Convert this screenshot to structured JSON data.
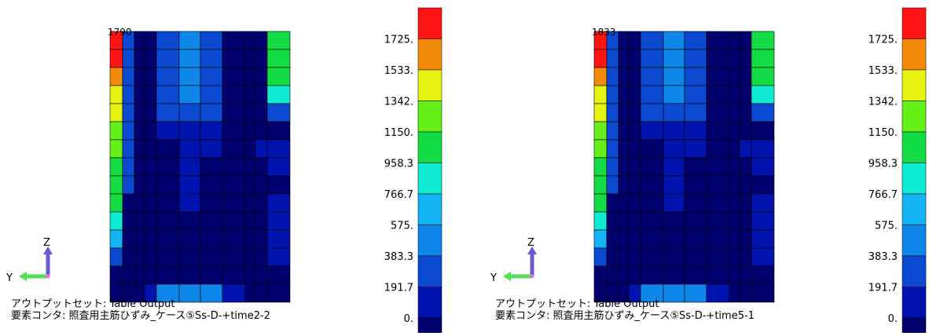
{
  "colors": {
    "levels": [
      "#00006f",
      "#0013ae",
      "#0a49d0",
      "#0f86ea",
      "#14b4f4",
      "#10ecd4",
      "#13dc44",
      "#66f019",
      "#e6f20f",
      "#f28a0a",
      "#ff1414"
    ],
    "mesh_line": "#000000",
    "axis_z": "#6a5acd",
    "axis_y": "#55dd55"
  },
  "legend": {
    "labels": [
      "1725.",
      "1533.",
      "1342.",
      "1150.",
      "958.3",
      "766.7",
      "575.",
      "383.3",
      "191.7",
      "0."
    ]
  },
  "axes": {
    "z_label": "Z",
    "y_label": "Y"
  },
  "panels": [
    {
      "max_label": "1790",
      "caption_line1": "アウトプットセット: Table Output",
      "caption_line2": "要素コンタ: 照査用主筋ひずみ_ケース⑤Ss-D-+time2-2",
      "grid": [
        [
          10,
          2,
          0,
          0,
          2,
          3,
          2,
          0,
          0,
          0,
          6
        ],
        [
          10,
          2,
          0,
          0,
          2,
          3,
          2,
          0,
          0,
          0,
          6
        ],
        [
          9,
          2,
          0,
          0,
          2,
          3,
          2,
          0,
          0,
          0,
          6
        ],
        [
          8,
          2,
          0,
          0,
          2,
          3,
          2,
          0,
          0,
          0,
          5
        ],
        [
          8,
          2,
          0,
          0,
          2,
          2,
          2,
          0,
          0,
          0,
          2
        ],
        [
          7,
          2,
          0,
          0,
          1,
          1,
          1,
          0,
          0,
          0,
          0
        ],
        [
          7,
          2,
          0,
          0,
          0,
          1,
          1,
          0,
          0,
          1,
          1
        ],
        [
          6,
          2,
          0,
          0,
          0,
          1,
          0,
          0,
          0,
          0,
          1
        ],
        [
          6,
          2,
          0,
          0,
          0,
          1,
          0,
          0,
          0,
          0,
          0
        ],
        [
          6,
          0,
          0,
          0,
          0,
          1,
          0,
          0,
          0,
          0,
          1
        ],
        [
          5,
          0,
          0,
          0,
          0,
          0,
          0,
          0,
          0,
          0,
          1
        ],
        [
          4,
          0,
          0,
          0,
          0,
          0,
          0,
          0,
          0,
          0,
          1
        ],
        [
          2,
          0,
          0,
          0,
          0,
          0,
          0,
          0,
          0,
          0,
          1
        ],
        [
          0,
          0,
          0,
          0,
          0,
          0,
          0,
          0,
          0,
          0,
          0
        ],
        [
          0,
          0,
          0,
          1,
          3,
          3,
          3,
          1,
          0,
          0,
          0
        ]
      ]
    },
    {
      "max_label": "1833",
      "caption_line1": "アウトプットセット: Table Output",
      "caption_line2": "要素コンタ: 照査用主筋ひずみ_ケース⑤Ss-D-+time5-1",
      "grid": [
        [
          10,
          2,
          0,
          0,
          2,
          3,
          2,
          0,
          0,
          0,
          6
        ],
        [
          10,
          2,
          0,
          0,
          2,
          3,
          2,
          0,
          0,
          0,
          6
        ],
        [
          9,
          2,
          0,
          0,
          2,
          3,
          2,
          0,
          0,
          0,
          6
        ],
        [
          8,
          2,
          0,
          0,
          2,
          3,
          2,
          0,
          0,
          0,
          5
        ],
        [
          8,
          2,
          0,
          0,
          2,
          2,
          2,
          0,
          0,
          0,
          2
        ],
        [
          7,
          2,
          0,
          0,
          1,
          1,
          1,
          0,
          0,
          0,
          0
        ],
        [
          7,
          2,
          0,
          0,
          0,
          1,
          1,
          0,
          0,
          1,
          1
        ],
        [
          6,
          2,
          0,
          0,
          0,
          1,
          0,
          0,
          0,
          0,
          1
        ],
        [
          6,
          2,
          0,
          0,
          0,
          1,
          0,
          0,
          0,
          0,
          0
        ],
        [
          6,
          0,
          0,
          0,
          0,
          1,
          0,
          0,
          0,
          0,
          1
        ],
        [
          5,
          0,
          0,
          0,
          0,
          0,
          0,
          0,
          0,
          0,
          1
        ],
        [
          4,
          0,
          0,
          0,
          0,
          0,
          0,
          0,
          0,
          0,
          1
        ],
        [
          2,
          0,
          0,
          0,
          0,
          0,
          0,
          0,
          0,
          0,
          1
        ],
        [
          0,
          0,
          0,
          0,
          0,
          0,
          0,
          0,
          0,
          0,
          0
        ],
        [
          0,
          0,
          0,
          1,
          3,
          3,
          3,
          1,
          0,
          0,
          0
        ]
      ]
    }
  ]
}
